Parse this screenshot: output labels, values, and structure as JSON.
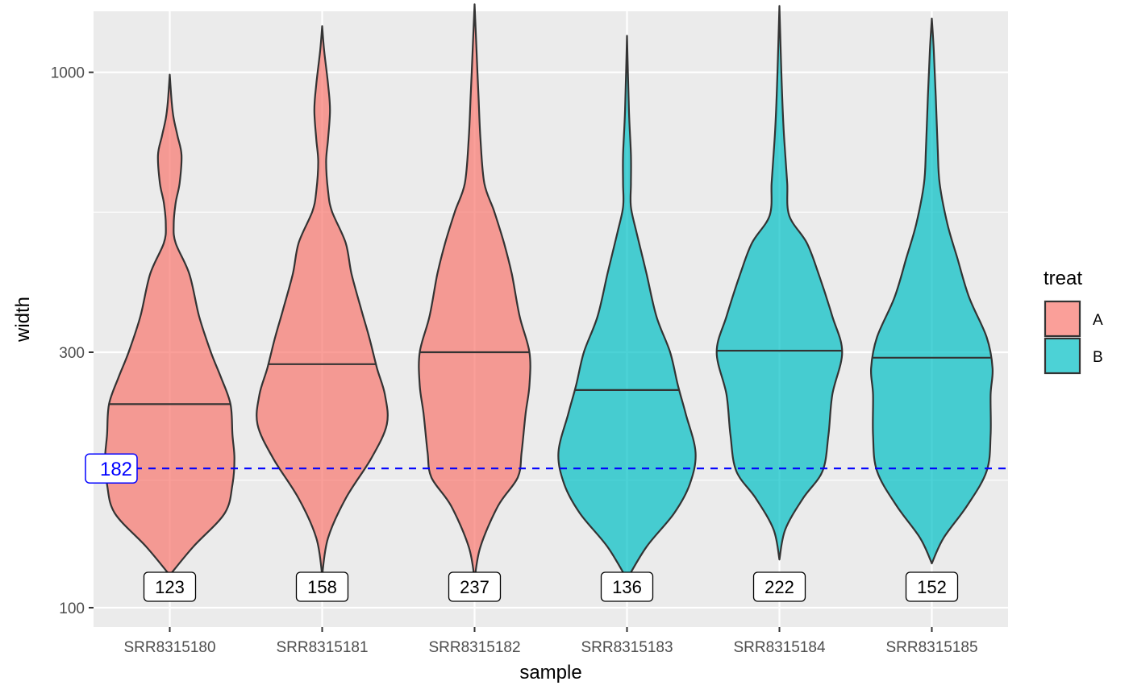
{
  "chart_data": {
    "type": "violin",
    "xlabel": "sample",
    "ylabel": "width",
    "y_scale": "log10",
    "ylim": [
      92,
      1300
    ],
    "y_ticks": [
      {
        "value": 100,
        "label": "100"
      },
      {
        "value": 300,
        "label": "300"
      },
      {
        "value": 1000,
        "label": "1000"
      }
    ],
    "y_minor_ticks": [
      173,
      548
    ],
    "grid": true,
    "panel_background": "#ebebeb",
    "grid_color": "#ffffff",
    "legend": {
      "title": "treat",
      "position": "right",
      "items": [
        {
          "label": "A",
          "color": "#F8766D"
        },
        {
          "label": "B",
          "color": "#00BFC4"
        }
      ]
    },
    "hline": {
      "value": 182,
      "label": "182",
      "color": "#0000FF",
      "style": "dashed"
    },
    "series": [
      {
        "name": "SRR8315180",
        "group": "A",
        "median": 240,
        "count_label": "123",
        "profile": [
          [
            115,
            0.0
          ],
          [
            130,
            0.12
          ],
          [
            150,
            0.28
          ],
          [
            170,
            0.32
          ],
          [
            190,
            0.33
          ],
          [
            210,
            0.32
          ],
          [
            240,
            0.31
          ],
          [
            270,
            0.26
          ],
          [
            300,
            0.21
          ],
          [
            350,
            0.15
          ],
          [
            420,
            0.1
          ],
          [
            480,
            0.03
          ],
          [
            520,
            0.02
          ],
          [
            570,
            0.03
          ],
          [
            620,
            0.05
          ],
          [
            700,
            0.06
          ],
          [
            760,
            0.04
          ],
          [
            820,
            0.02
          ],
          [
            880,
            0.01
          ],
          [
            990,
            0.0
          ]
        ]
      },
      {
        "name": "SRR8315181",
        "group": "A",
        "median": 285,
        "count_label": "158",
        "profile": [
          [
            115,
            0.0
          ],
          [
            135,
            0.03
          ],
          [
            160,
            0.12
          ],
          [
            190,
            0.25
          ],
          [
            220,
            0.33
          ],
          [
            250,
            0.32
          ],
          [
            280,
            0.28
          ],
          [
            320,
            0.24
          ],
          [
            360,
            0.2
          ],
          [
            420,
            0.15
          ],
          [
            480,
            0.12
          ],
          [
            550,
            0.05
          ],
          [
            600,
            0.03
          ],
          [
            680,
            0.02
          ],
          [
            750,
            0.03
          ],
          [
            850,
            0.04
          ],
          [
            950,
            0.03
          ],
          [
            1100,
            0.01
          ],
          [
            1220,
            0.0
          ]
        ]
      },
      {
        "name": "SRR8315182",
        "group": "A",
        "median": 300,
        "count_label": "237",
        "profile": [
          [
            113,
            0.0
          ],
          [
            130,
            0.03
          ],
          [
            155,
            0.12
          ],
          [
            175,
            0.22
          ],
          [
            195,
            0.24
          ],
          [
            230,
            0.26
          ],
          [
            260,
            0.28
          ],
          [
            300,
            0.28
          ],
          [
            350,
            0.23
          ],
          [
            420,
            0.19
          ],
          [
            480,
            0.15
          ],
          [
            550,
            0.1
          ],
          [
            620,
            0.05
          ],
          [
            750,
            0.03
          ],
          [
            900,
            0.02
          ],
          [
            1100,
            0.01
          ],
          [
            1340,
            0.0
          ]
        ]
      },
      {
        "name": "SRR8315183",
        "group": "B",
        "median": 255,
        "count_label": "136",
        "profile": [
          [
            113,
            0.0
          ],
          [
            130,
            0.1
          ],
          [
            150,
            0.24
          ],
          [
            170,
            0.32
          ],
          [
            195,
            0.35
          ],
          [
            230,
            0.3
          ],
          [
            260,
            0.26
          ],
          [
            300,
            0.22
          ],
          [
            350,
            0.15
          ],
          [
            420,
            0.1
          ],
          [
            500,
            0.05
          ],
          [
            560,
            0.02
          ],
          [
            620,
            0.02
          ],
          [
            700,
            0.02
          ],
          [
            850,
            0.01
          ],
          [
            1170,
            0.0
          ]
        ]
      },
      {
        "name": "SRR8315184",
        "group": "B",
        "median": 302,
        "count_label": "222",
        "profile": [
          [
            123,
            0.0
          ],
          [
            140,
            0.03
          ],
          [
            160,
            0.12
          ],
          [
            180,
            0.22
          ],
          [
            210,
            0.25
          ],
          [
            250,
            0.27
          ],
          [
            300,
            0.32
          ],
          [
            350,
            0.27
          ],
          [
            420,
            0.2
          ],
          [
            480,
            0.14
          ],
          [
            540,
            0.05
          ],
          [
            620,
            0.04
          ],
          [
            700,
            0.03
          ],
          [
            800,
            0.02
          ],
          [
            1000,
            0.01
          ],
          [
            1330,
            0.0
          ]
        ]
      },
      {
        "name": "SRR8315185",
        "group": "B",
        "median": 293,
        "count_label": "152",
        "profile": [
          [
            121,
            0.0
          ],
          [
            135,
            0.06
          ],
          [
            155,
            0.18
          ],
          [
            180,
            0.28
          ],
          [
            210,
            0.3
          ],
          [
            250,
            0.3
          ],
          [
            280,
            0.31
          ],
          [
            320,
            0.28
          ],
          [
            380,
            0.19
          ],
          [
            450,
            0.13
          ],
          [
            520,
            0.08
          ],
          [
            620,
            0.04
          ],
          [
            720,
            0.03
          ],
          [
            900,
            0.02
          ],
          [
            1100,
            0.01
          ],
          [
            1260,
            0.0
          ]
        ]
      }
    ]
  }
}
